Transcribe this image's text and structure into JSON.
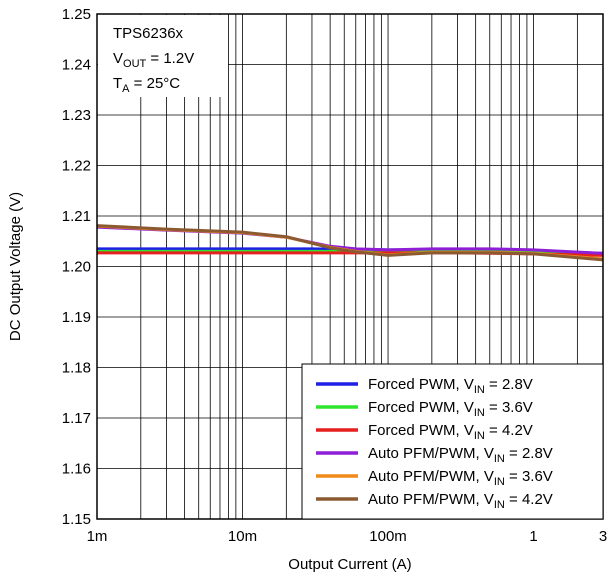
{
  "chart_data": {
    "type": "line",
    "title": "",
    "xlabel": "Output Current (A)",
    "ylabel": "DC Output Voltage (V)",
    "x_scale": "log",
    "xlim": [
      0.001,
      3
    ],
    "ylim": [
      1.15,
      1.25
    ],
    "grid": true,
    "x_ticks": [
      {
        "value": 0.001,
        "label": "1m"
      },
      {
        "value": 0.01,
        "label": "10m"
      },
      {
        "value": 0.1,
        "label": "100m"
      },
      {
        "value": 1,
        "label": "1"
      },
      {
        "value": 3,
        "label": "3"
      }
    ],
    "y_ticks": [
      {
        "value": 1.15,
        "label": "1.15"
      },
      {
        "value": 1.16,
        "label": "1.16"
      },
      {
        "value": 1.17,
        "label": "1.17"
      },
      {
        "value": 1.18,
        "label": "1.18"
      },
      {
        "value": 1.19,
        "label": "1.19"
      },
      {
        "value": 1.2,
        "label": "1.20"
      },
      {
        "value": 1.21,
        "label": "1.21"
      },
      {
        "value": 1.22,
        "label": "1.22"
      },
      {
        "value": 1.23,
        "label": "1.23"
      },
      {
        "value": 1.24,
        "label": "1.24"
      },
      {
        "value": 1.25,
        "label": "1.25"
      }
    ],
    "annotation": {
      "device": "TPS6236x",
      "vout_main": "V",
      "vout_sub": "OUT",
      "vout_rest": " = 1.2V",
      "ta_main": "T",
      "ta_sub": "A",
      "ta_rest": " = 25°C"
    },
    "legend_position": "bottom-right",
    "series": [
      {
        "name": "Forced PWM, V",
        "name_sub": "IN",
        "name_rest": " = 2.8V",
        "color": "#1f1fe6",
        "points": [
          [
            0.001,
            1.2035
          ],
          [
            0.003,
            1.2035
          ],
          [
            0.01,
            1.2035
          ],
          [
            0.03,
            1.2035
          ],
          [
            0.1,
            1.2033
          ],
          [
            0.3,
            1.2033
          ],
          [
            1,
            1.2031
          ],
          [
            3,
            1.2026
          ]
        ]
      },
      {
        "name": "Forced PWM, V",
        "name_sub": "IN",
        "name_rest": " = 3.6V",
        "color": "#2ee62e",
        "points": [
          [
            0.001,
            1.203
          ],
          [
            0.003,
            1.203
          ],
          [
            0.01,
            1.203
          ],
          [
            0.03,
            1.203
          ],
          [
            0.1,
            1.203
          ],
          [
            0.3,
            1.203
          ],
          [
            1,
            1.2028
          ],
          [
            3,
            1.2024
          ]
        ]
      },
      {
        "name": "Forced PWM, V",
        "name_sub": "IN",
        "name_rest": " = 4.2V",
        "color": "#e61f1f",
        "points": [
          [
            0.001,
            1.2027
          ],
          [
            0.003,
            1.2027
          ],
          [
            0.01,
            1.2027
          ],
          [
            0.03,
            1.2027
          ],
          [
            0.1,
            1.2027
          ],
          [
            0.3,
            1.2027
          ],
          [
            1,
            1.2025
          ],
          [
            3,
            1.2022
          ]
        ]
      },
      {
        "name": "Auto PFM/PWM, V",
        "name_sub": "IN",
        "name_rest": " = 2.8V",
        "color": "#8e1fd6",
        "points": [
          [
            0.001,
            1.2078
          ],
          [
            0.003,
            1.2072
          ],
          [
            0.01,
            1.2066
          ],
          [
            0.02,
            1.2058
          ],
          [
            0.04,
            1.204
          ],
          [
            0.06,
            1.2035
          ],
          [
            0.1,
            1.2033
          ],
          [
            0.2,
            1.2035
          ],
          [
            0.5,
            1.2035
          ],
          [
            1,
            1.2033
          ],
          [
            3,
            1.2026
          ]
        ]
      },
      {
        "name": "Auto PFM/PWM, V",
        "name_sub": "IN",
        "name_rest": " = 3.6V",
        "color": "#f08a1a",
        "points": [
          [
            0.001,
            1.208
          ],
          [
            0.003,
            1.2073
          ],
          [
            0.01,
            1.2067
          ],
          [
            0.02,
            1.2058
          ],
          [
            0.04,
            1.2038
          ],
          [
            0.06,
            1.203
          ],
          [
            0.1,
            1.2023
          ],
          [
            0.2,
            1.2028
          ],
          [
            0.5,
            1.2028
          ],
          [
            1,
            1.2026
          ],
          [
            3,
            1.2015
          ]
        ]
      },
      {
        "name": "Auto PFM/PWM, V",
        "name_sub": "IN",
        "name_rest": " = 4.2V",
        "color": "#8c5a30",
        "points": [
          [
            0.001,
            1.2081
          ],
          [
            0.003,
            1.2074
          ],
          [
            0.01,
            1.2068
          ],
          [
            0.02,
            1.2059
          ],
          [
            0.04,
            1.2037
          ],
          [
            0.06,
            1.2029
          ],
          [
            0.1,
            1.2022
          ],
          [
            0.2,
            1.2027
          ],
          [
            0.5,
            1.2027
          ],
          [
            1,
            1.2025
          ],
          [
            3,
            1.2013
          ]
        ]
      }
    ]
  }
}
